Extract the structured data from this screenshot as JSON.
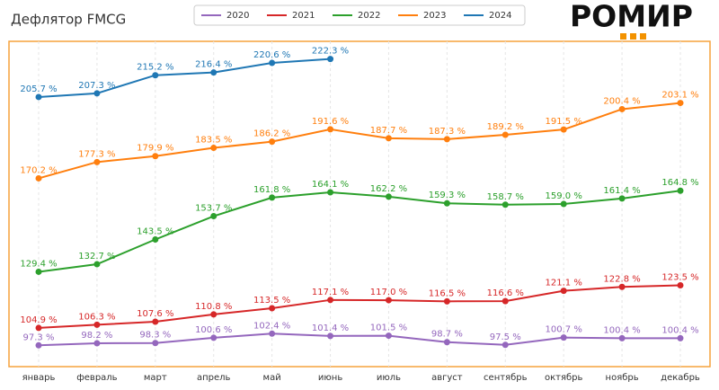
{
  "chart_data": {
    "type": "line",
    "title": "Дефлятор FMCG",
    "logo": "РОМИР",
    "categories": [
      "январь",
      "февраль",
      "март",
      "апрель",
      "май",
      "июнь",
      "июль",
      "август",
      "сентябрь",
      "октябрь",
      "ноябрь",
      "декабрь"
    ],
    "ylim": [
      88,
      230
    ],
    "grid": true,
    "legend": "top",
    "series": [
      {
        "name": "2020",
        "color": "#9467bd",
        "values": [
          97.3,
          98.2,
          98.3,
          100.6,
          102.4,
          101.4,
          101.5,
          98.7,
          97.5,
          100.7,
          100.4,
          100.4
        ],
        "value_labels": [
          "97.3 %",
          "98.2 %",
          "98.3 %",
          "100.6 %",
          "102.4 %",
          "101.4 %",
          "101.5 %",
          "98.7 %",
          "97.5 %",
          "100.7 %",
          "100.4 %",
          "100.4 %"
        ]
      },
      {
        "name": "2021",
        "color": "#d62728",
        "values": [
          104.9,
          106.3,
          107.6,
          110.8,
          113.5,
          117.1,
          117.0,
          116.5,
          116.6,
          121.1,
          122.8,
          123.5
        ],
        "value_labels": [
          "104.9 %",
          "106.3 %",
          "107.6 %",
          "110.8 %",
          "113.5 %",
          "117.1 %",
          "117.0 %",
          "116.5 %",
          "116.6 %",
          "121.1 %",
          "122.8 %",
          "123.5 %"
        ]
      },
      {
        "name": "2022",
        "color": "#2ca02c",
        "values": [
          129.4,
          132.7,
          143.5,
          153.7,
          161.8,
          164.1,
          162.2,
          159.3,
          158.7,
          159.0,
          161.4,
          164.8
        ],
        "value_labels": [
          "129.4 %",
          "132.7 %",
          "143.5 %",
          "153.7 %",
          "161.8 %",
          "164.1 %",
          "162.2 %",
          "159.3 %",
          "158.7 %",
          "159.0 %",
          "161.4 %",
          "164.8 %"
        ]
      },
      {
        "name": "2023",
        "color": "#ff7f0e",
        "values": [
          170.2,
          177.3,
          179.9,
          183.5,
          186.2,
          191.6,
          187.7,
          187.3,
          189.2,
          191.5,
          200.4,
          203.1
        ],
        "value_labels": [
          "170.2 %",
          "177.3 %",
          "179.9 %",
          "183.5 %",
          "186.2 %",
          "191.6 %",
          "187.7 %",
          "187.3 %",
          "189.2 %",
          "191.5 %",
          "200.4 %",
          "203.1 %"
        ]
      },
      {
        "name": "2024",
        "color": "#1f77b4",
        "values": [
          205.7,
          207.3,
          215.2,
          216.4,
          220.6,
          222.3,
          null,
          null,
          null,
          null,
          null,
          null
        ],
        "value_labels": [
          "205.7 %",
          "207.3 %",
          "215.2 %",
          "216.4 %",
          "220.6 %",
          "222.3 %",
          null,
          null,
          null,
          null,
          null,
          null
        ]
      }
    ]
  }
}
